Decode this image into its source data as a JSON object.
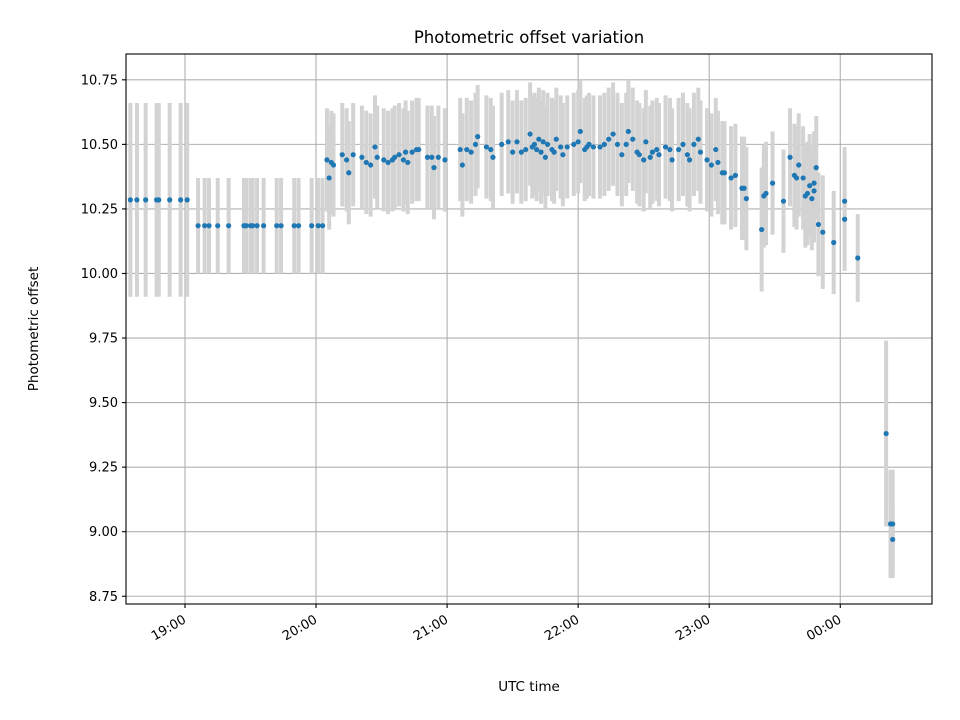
{
  "chart_data": {
    "type": "scatter",
    "title": "Photometric offset variation",
    "xlabel": "UTC time",
    "ylabel": "Photometric offset",
    "x_ticks": [
      "19:00",
      "20:00",
      "21:00",
      "22:00",
      "23:00",
      "00:00"
    ],
    "y_ticks": [
      "8.75",
      "9.00",
      "9.25",
      "9.50",
      "9.75",
      "10.00",
      "10.25",
      "10.50",
      "10.75"
    ],
    "xlim": [
      "18:33",
      "00:42"
    ],
    "ylim": [
      8.72,
      10.85
    ],
    "grid": true,
    "colors": {
      "points": "#1f77b4",
      "error_bars": "#d3d3d3",
      "grid": "#b0b0b0"
    },
    "series": [
      {
        "error_bars": true,
        "points": [
          {
            "t": "18:35",
            "y": 10.285,
            "err": 0.375
          },
          {
            "t": "18:38",
            "y": 10.285,
            "err": 0.375
          },
          {
            "t": "18:42",
            "y": 10.285,
            "err": 0.375
          },
          {
            "t": "18:47",
            "y": 10.285,
            "err": 0.375
          },
          {
            "t": "18:48",
            "y": 10.285,
            "err": 0.375
          },
          {
            "t": "18:53",
            "y": 10.285,
            "err": 0.375
          },
          {
            "t": "18:58",
            "y": 10.285,
            "err": 0.375
          },
          {
            "t": "19:01",
            "y": 10.285,
            "err": 0.375
          },
          {
            "t": "19:06",
            "y": 10.185,
            "err": 0.185
          },
          {
            "t": "19:09",
            "y": 10.185,
            "err": 0.185
          },
          {
            "t": "19:11",
            "y": 10.185,
            "err": 0.185
          },
          {
            "t": "19:15",
            "y": 10.185,
            "err": 0.185
          },
          {
            "t": "19:20",
            "y": 10.185,
            "err": 0.185
          },
          {
            "t": "19:27",
            "y": 10.185,
            "err": 0.185
          },
          {
            "t": "19:28",
            "y": 10.185,
            "err": 0.185
          },
          {
            "t": "19:30",
            "y": 10.185,
            "err": 0.185
          },
          {
            "t": "19:31",
            "y": 10.185,
            "err": 0.185
          },
          {
            "t": "19:33",
            "y": 10.185,
            "err": 0.185
          },
          {
            "t": "19:36",
            "y": 10.185,
            "err": 0.185
          },
          {
            "t": "19:42",
            "y": 10.185,
            "err": 0.185
          },
          {
            "t": "19:44",
            "y": 10.185,
            "err": 0.185
          },
          {
            "t": "19:50",
            "y": 10.185,
            "err": 0.185
          },
          {
            "t": "19:52",
            "y": 10.185,
            "err": 0.185
          },
          {
            "t": "19:58",
            "y": 10.185,
            "err": 0.185
          },
          {
            "t": "20:01",
            "y": 10.185,
            "err": 0.185
          },
          {
            "t": "20:03",
            "y": 10.185,
            "err": 0.185
          },
          {
            "t": "20:05",
            "y": 10.44,
            "err": 0.2
          },
          {
            "t": "20:06",
            "y": 10.37,
            "err": 0.2
          },
          {
            "t": "20:07",
            "y": 10.43,
            "err": 0.2
          },
          {
            "t": "20:08",
            "y": 10.42,
            "err": 0.2
          },
          {
            "t": "20:12",
            "y": 10.46,
            "err": 0.2
          },
          {
            "t": "20:14",
            "y": 10.44,
            "err": 0.2
          },
          {
            "t": "20:15",
            "y": 10.39,
            "err": 0.2
          },
          {
            "t": "20:17",
            "y": 10.46,
            "err": 0.2
          },
          {
            "t": "20:21",
            "y": 10.45,
            "err": 0.2
          },
          {
            "t": "20:23",
            "y": 10.43,
            "err": 0.2
          },
          {
            "t": "20:25",
            "y": 10.42,
            "err": 0.2
          },
          {
            "t": "20:27",
            "y": 10.49,
            "err": 0.2
          },
          {
            "t": "20:28",
            "y": 10.45,
            "err": 0.2
          },
          {
            "t": "20:31",
            "y": 10.44,
            "err": 0.2
          },
          {
            "t": "20:33",
            "y": 10.43,
            "err": 0.2
          },
          {
            "t": "20:35",
            "y": 10.44,
            "err": 0.2
          },
          {
            "t": "20:36",
            "y": 10.45,
            "err": 0.2
          },
          {
            "t": "20:38",
            "y": 10.46,
            "err": 0.2
          },
          {
            "t": "20:40",
            "y": 10.44,
            "err": 0.2
          },
          {
            "t": "20:41",
            "y": 10.47,
            "err": 0.2
          },
          {
            "t": "20:42",
            "y": 10.43,
            "err": 0.2
          },
          {
            "t": "20:44",
            "y": 10.47,
            "err": 0.2
          },
          {
            "t": "20:46",
            "y": 10.48,
            "err": 0.2
          },
          {
            "t": "20:47",
            "y": 10.48,
            "err": 0.2
          },
          {
            "t": "20:51",
            "y": 10.45,
            "err": 0.2
          },
          {
            "t": "20:53",
            "y": 10.45,
            "err": 0.2
          },
          {
            "t": "20:54",
            "y": 10.41,
            "err": 0.2
          },
          {
            "t": "20:56",
            "y": 10.45,
            "err": 0.2
          },
          {
            "t": "20:59",
            "y": 10.44,
            "err": 0.2
          },
          {
            "t": "21:06",
            "y": 10.48,
            "err": 0.2
          },
          {
            "t": "21:07",
            "y": 10.42,
            "err": 0.2
          },
          {
            "t": "21:09",
            "y": 10.48,
            "err": 0.2
          },
          {
            "t": "21:11",
            "y": 10.47,
            "err": 0.2
          },
          {
            "t": "21:13",
            "y": 10.5,
            "err": 0.2
          },
          {
            "t": "21:14",
            "y": 10.53,
            "err": 0.2
          },
          {
            "t": "21:18",
            "y": 10.49,
            "err": 0.2
          },
          {
            "t": "21:20",
            "y": 10.48,
            "err": 0.2
          },
          {
            "t": "21:21",
            "y": 10.45,
            "err": 0.2
          },
          {
            "t": "21:25",
            "y": 10.5,
            "err": 0.2
          },
          {
            "t": "21:28",
            "y": 10.51,
            "err": 0.2
          },
          {
            "t": "21:30",
            "y": 10.47,
            "err": 0.2
          },
          {
            "t": "21:32",
            "y": 10.51,
            "err": 0.2
          },
          {
            "t": "21:34",
            "y": 10.47,
            "err": 0.2
          },
          {
            "t": "21:36",
            "y": 10.48,
            "err": 0.2
          },
          {
            "t": "21:38",
            "y": 10.54,
            "err": 0.2
          },
          {
            "t": "21:39",
            "y": 10.49,
            "err": 0.2
          },
          {
            "t": "21:40",
            "y": 10.5,
            "err": 0.2
          },
          {
            "t": "21:41",
            "y": 10.48,
            "err": 0.2
          },
          {
            "t": "21:42",
            "y": 10.52,
            "err": 0.2
          },
          {
            "t": "21:43",
            "y": 10.47,
            "err": 0.2
          },
          {
            "t": "21:44",
            "y": 10.51,
            "err": 0.2
          },
          {
            "t": "21:45",
            "y": 10.45,
            "err": 0.2
          },
          {
            "t": "21:46",
            "y": 10.5,
            "err": 0.2
          },
          {
            "t": "21:48",
            "y": 10.48,
            "err": 0.2
          },
          {
            "t": "21:49",
            "y": 10.47,
            "err": 0.2
          },
          {
            "t": "21:50",
            "y": 10.52,
            "err": 0.2
          },
          {
            "t": "21:52",
            "y": 10.49,
            "err": 0.2
          },
          {
            "t": "21:53",
            "y": 10.46,
            "err": 0.2
          },
          {
            "t": "21:55",
            "y": 10.49,
            "err": 0.2
          },
          {
            "t": "21:58",
            "y": 10.5,
            "err": 0.2
          },
          {
            "t": "22:00",
            "y": 10.51,
            "err": 0.2
          },
          {
            "t": "22:01",
            "y": 10.55,
            "err": 0.2
          },
          {
            "t": "22:03",
            "y": 10.48,
            "err": 0.2
          },
          {
            "t": "22:04",
            "y": 10.49,
            "err": 0.2
          },
          {
            "t": "22:05",
            "y": 10.5,
            "err": 0.2
          },
          {
            "t": "22:07",
            "y": 10.49,
            "err": 0.2
          },
          {
            "t": "22:10",
            "y": 10.49,
            "err": 0.2
          },
          {
            "t": "22:12",
            "y": 10.5,
            "err": 0.2
          },
          {
            "t": "22:14",
            "y": 10.52,
            "err": 0.2
          },
          {
            "t": "22:16",
            "y": 10.54,
            "err": 0.2
          },
          {
            "t": "22:18",
            "y": 10.5,
            "err": 0.2
          },
          {
            "t": "22:20",
            "y": 10.46,
            "err": 0.2
          },
          {
            "t": "22:22",
            "y": 10.5,
            "err": 0.2
          },
          {
            "t": "22:23",
            "y": 10.55,
            "err": 0.2
          },
          {
            "t": "22:25",
            "y": 10.52,
            "err": 0.2
          },
          {
            "t": "22:27",
            "y": 10.47,
            "err": 0.2
          },
          {
            "t": "22:28",
            "y": 10.46,
            "err": 0.2
          },
          {
            "t": "22:30",
            "y": 10.44,
            "err": 0.2
          },
          {
            "t": "22:31",
            "y": 10.51,
            "err": 0.2
          },
          {
            "t": "22:33",
            "y": 10.45,
            "err": 0.2
          },
          {
            "t": "22:34",
            "y": 10.47,
            "err": 0.2
          },
          {
            "t": "22:36",
            "y": 10.48,
            "err": 0.2
          },
          {
            "t": "22:37",
            "y": 10.46,
            "err": 0.2
          },
          {
            "t": "22:40",
            "y": 10.49,
            "err": 0.2
          },
          {
            "t": "22:42",
            "y": 10.48,
            "err": 0.2
          },
          {
            "t": "22:43",
            "y": 10.44,
            "err": 0.2
          },
          {
            "t": "22:46",
            "y": 10.48,
            "err": 0.2
          },
          {
            "t": "22:48",
            "y": 10.5,
            "err": 0.2
          },
          {
            "t": "22:50",
            "y": 10.46,
            "err": 0.2
          },
          {
            "t": "22:51",
            "y": 10.44,
            "err": 0.2
          },
          {
            "t": "22:53",
            "y": 10.5,
            "err": 0.2
          },
          {
            "t": "22:55",
            "y": 10.52,
            "err": 0.2
          },
          {
            "t": "22:56",
            "y": 10.47,
            "err": 0.2
          },
          {
            "t": "22:59",
            "y": 10.44,
            "err": 0.2
          },
          {
            "t": "23:01",
            "y": 10.42,
            "err": 0.2
          },
          {
            "t": "23:03",
            "y": 10.48,
            "err": 0.2
          },
          {
            "t": "23:04",
            "y": 10.43,
            "err": 0.2
          },
          {
            "t": "23:06",
            "y": 10.39,
            "err": 0.2
          },
          {
            "t": "23:07",
            "y": 10.39,
            "err": 0.2
          },
          {
            "t": "23:10",
            "y": 10.37,
            "err": 0.2
          },
          {
            "t": "23:12",
            "y": 10.38,
            "err": 0.2
          },
          {
            "t": "23:15",
            "y": 10.33,
            "err": 0.2
          },
          {
            "t": "23:16",
            "y": 10.33,
            "err": 0.2
          },
          {
            "t": "23:17",
            "y": 10.29,
            "err": 0.2
          },
          {
            "t": "23:24",
            "y": 10.17,
            "err": 0.24
          },
          {
            "t": "23:25",
            "y": 10.3,
            "err": 0.2
          },
          {
            "t": "23:26",
            "y": 10.31,
            "err": 0.2
          },
          {
            "t": "23:29",
            "y": 10.35,
            "err": 0.2
          },
          {
            "t": "23:34",
            "y": 10.28,
            "err": 0.2
          },
          {
            "t": "23:37",
            "y": 10.45,
            "err": 0.19
          },
          {
            "t": "23:39",
            "y": 10.38,
            "err": 0.2
          },
          {
            "t": "23:40",
            "y": 10.37,
            "err": 0.2
          },
          {
            "t": "23:41",
            "y": 10.42,
            "err": 0.2
          },
          {
            "t": "23:43",
            "y": 10.37,
            "err": 0.2
          },
          {
            "t": "23:44",
            "y": 10.3,
            "err": 0.2
          },
          {
            "t": "23:45",
            "y": 10.31,
            "err": 0.2
          },
          {
            "t": "23:46",
            "y": 10.34,
            "err": 0.2
          },
          {
            "t": "23:47",
            "y": 10.29,
            "err": 0.2
          },
          {
            "t": "23:48",
            "y": 10.35,
            "err": 0.2
          },
          {
            "t": "23:48",
            "y": 10.32,
            "err": 0.2
          },
          {
            "t": "23:49",
            "y": 10.41,
            "err": 0.2
          },
          {
            "t": "23:50",
            "y": 10.19,
            "err": 0.2
          },
          {
            "t": "23:52",
            "y": 10.16,
            "err": 0.22
          },
          {
            "t": "23:57",
            "y": 10.12,
            "err": 0.2
          },
          {
            "t": "00:02",
            "y": 10.21,
            "err": 0.2
          },
          {
            "t": "00:02",
            "y": 10.28,
            "err": 0.21
          },
          {
            "t": "00:08",
            "y": 10.06,
            "err": 0.17
          },
          {
            "t": "00:21",
            "y": 9.38,
            "err": 0.36
          },
          {
            "t": "00:23",
            "y": 9.03,
            "err": 0.21
          },
          {
            "t": "00:24",
            "y": 9.03,
            "err": 0.21
          },
          {
            "t": "00:24",
            "y": 8.97,
            "err": 0.13
          }
        ]
      }
    ]
  }
}
